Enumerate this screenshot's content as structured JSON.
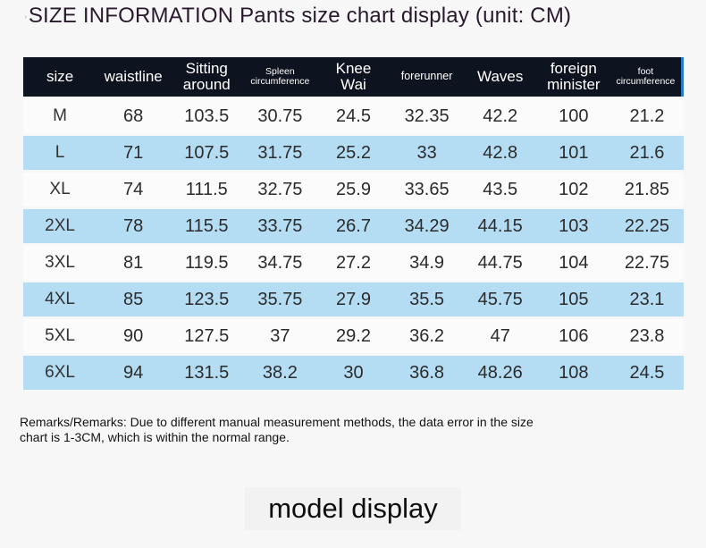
{
  "page": {
    "title": "SIZE INFORMATION Pants size chart display (unit: CM)",
    "title_mark": ","
  },
  "table": {
    "headers": [
      {
        "id": "size",
        "lines": [
          "size"
        ],
        "size": "normal"
      },
      {
        "id": "waistline",
        "lines": [
          "waistline"
        ],
        "size": "normal"
      },
      {
        "id": "sitting-around",
        "lines": [
          "Sitting",
          "around"
        ],
        "size": "normal"
      },
      {
        "id": "spleen-circumference",
        "lines": [
          "Spleen",
          "circumference"
        ],
        "size": "small"
      },
      {
        "id": "knee-wai",
        "lines": [
          "Knee",
          "Wai"
        ],
        "size": "normal"
      },
      {
        "id": "forerunner",
        "lines": [
          "forerunner"
        ],
        "size": "medium"
      },
      {
        "id": "waves",
        "lines": [
          "Waves"
        ],
        "size": "normal"
      },
      {
        "id": "foreign-minister",
        "lines": [
          "foreign",
          "minister"
        ],
        "size": "normal"
      },
      {
        "id": "foot-circumference",
        "lines": [
          "foot",
          "circumference"
        ],
        "size": "small"
      }
    ],
    "rows": [
      {
        "cells": [
          "M",
          "68",
          "103.5",
          "30.75",
          "24.5",
          "32.35",
          "42.2",
          "100",
          "21.2"
        ]
      },
      {
        "cells": [
          "L",
          "71",
          "107.5",
          "31.75",
          "25.2",
          "33",
          "42.8",
          "101",
          "21.6"
        ]
      },
      {
        "cells": [
          "XL",
          "74",
          "111.5",
          "32.75",
          "25.9",
          "33.65",
          "43.5",
          "102",
          "21.85"
        ]
      },
      {
        "cells": [
          "2XL",
          "78",
          "115.5",
          "33.75",
          "26.7",
          "34.29",
          "44.15",
          "103",
          "22.25"
        ]
      },
      {
        "cells": [
          "3XL",
          "81",
          "119.5",
          "34.75",
          "27.2",
          "34.9",
          "44.75",
          "104",
          "22.75"
        ]
      },
      {
        "cells": [
          "4XL",
          "85",
          "123.5",
          "35.75",
          "27.9",
          "35.5",
          "45.75",
          "105",
          "23.1"
        ]
      },
      {
        "cells": [
          "5XL",
          "90",
          "127.5",
          "37",
          "29.2",
          "36.2",
          "47",
          "106",
          "23.8"
        ]
      },
      {
        "cells": [
          "6XL",
          "94",
          "131.5",
          "38.2",
          "30",
          "36.8",
          "48.26",
          "108",
          "24.5"
        ]
      }
    ]
  },
  "remarks": "Remarks/Remarks: Due to different manual measurement methods, the data error in the size chart is 1-3CM, which is within the normal range.",
  "model_display": "model display",
  "colors": {
    "page_bg": "#f7f7f8",
    "header_bg": "#0e141f",
    "header_text": "#ffffff",
    "header_accent": "#2878c8",
    "row_bg": "#fbfbfc",
    "row_alt_bg": "#b4ddf4"
  }
}
